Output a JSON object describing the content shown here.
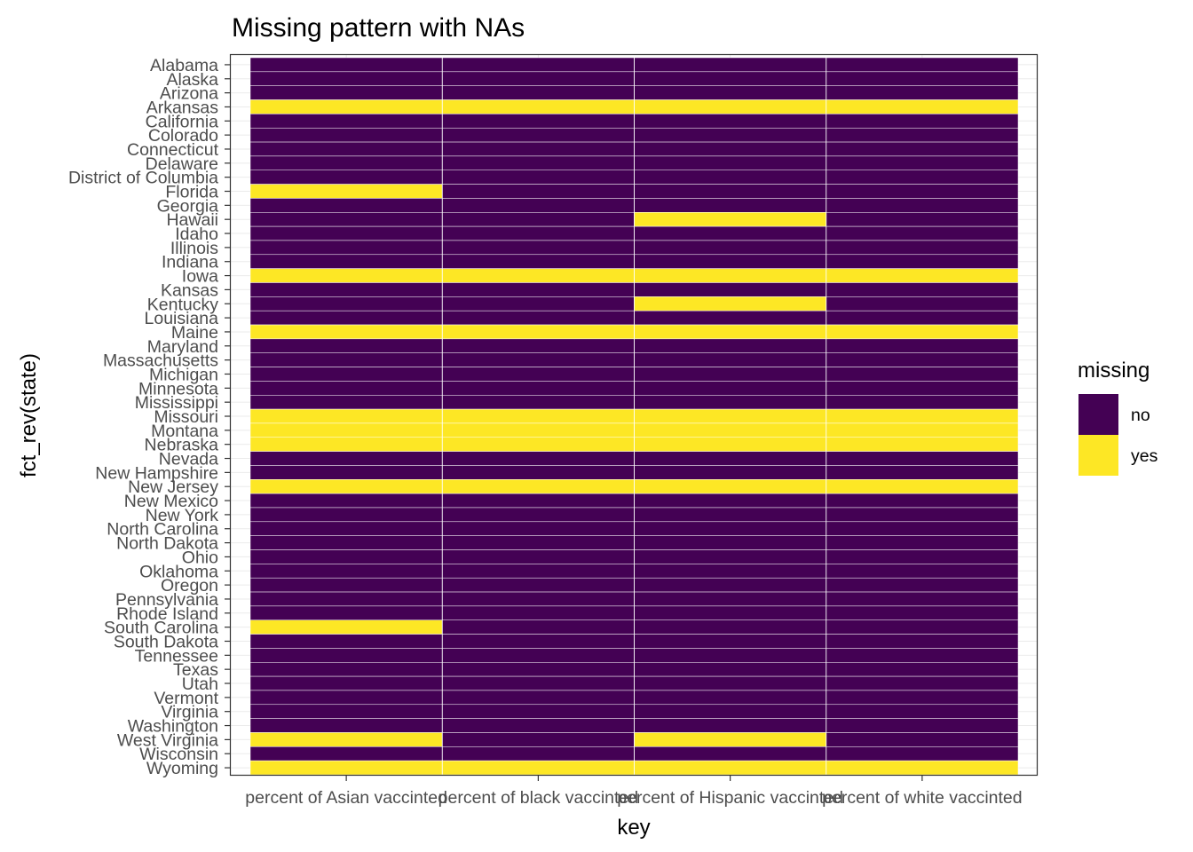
{
  "chart_data": {
    "type": "heatmap",
    "title": "Missing pattern with NAs",
    "xlabel": "key",
    "ylabel": "fct_rev(state)",
    "legend": {
      "title": "missing",
      "position": "right",
      "items": [
        {
          "label": "no",
          "color": "#440154"
        },
        {
          "label": "yes",
          "color": "#FDE725"
        }
      ]
    },
    "grid": true,
    "x": [
      "percent of Asian vaccinted",
      "percent of black vaccinted",
      "percent of Hispanic vaccinted",
      "percent of white vaccinted"
    ],
    "y": [
      "Alabama",
      "Alaska",
      "Arizona",
      "Arkansas",
      "California",
      "Colorado",
      "Connecticut",
      "Delaware",
      "District of Columbia",
      "Florida",
      "Georgia",
      "Hawaii",
      "Idaho",
      "Illinois",
      "Indiana",
      "Iowa",
      "Kansas",
      "Kentucky",
      "Louisiana",
      "Maine",
      "Maryland",
      "Massachusetts",
      "Michigan",
      "Minnesota",
      "Mississippi",
      "Missouri",
      "Montana",
      "Nebraska",
      "Nevada",
      "New Hampshire",
      "New Jersey",
      "New Mexico",
      "New York",
      "North Carolina",
      "North Dakota",
      "Ohio",
      "Oklahoma",
      "Oregon",
      "Pennsylvania",
      "Rhode Island",
      "South Carolina",
      "South Dakota",
      "Tennessee",
      "Texas",
      "Utah",
      "Vermont",
      "Virginia",
      "Washington",
      "West Virginia",
      "Wisconsin",
      "Wyoming"
    ],
    "missing": [
      [
        "no",
        "no",
        "no",
        "no"
      ],
      [
        "no",
        "no",
        "no",
        "no"
      ],
      [
        "no",
        "no",
        "no",
        "no"
      ],
      [
        "yes",
        "yes",
        "yes",
        "yes"
      ],
      [
        "no",
        "no",
        "no",
        "no"
      ],
      [
        "no",
        "no",
        "no",
        "no"
      ],
      [
        "no",
        "no",
        "no",
        "no"
      ],
      [
        "no",
        "no",
        "no",
        "no"
      ],
      [
        "no",
        "no",
        "no",
        "no"
      ],
      [
        "yes",
        "no",
        "no",
        "no"
      ],
      [
        "no",
        "no",
        "no",
        "no"
      ],
      [
        "no",
        "no",
        "yes",
        "no"
      ],
      [
        "no",
        "no",
        "no",
        "no"
      ],
      [
        "no",
        "no",
        "no",
        "no"
      ],
      [
        "no",
        "no",
        "no",
        "no"
      ],
      [
        "yes",
        "yes",
        "yes",
        "yes"
      ],
      [
        "no",
        "no",
        "no",
        "no"
      ],
      [
        "no",
        "no",
        "yes",
        "no"
      ],
      [
        "no",
        "no",
        "no",
        "no"
      ],
      [
        "yes",
        "yes",
        "yes",
        "yes"
      ],
      [
        "no",
        "no",
        "no",
        "no"
      ],
      [
        "no",
        "no",
        "no",
        "no"
      ],
      [
        "no",
        "no",
        "no",
        "no"
      ],
      [
        "no",
        "no",
        "no",
        "no"
      ],
      [
        "no",
        "no",
        "no",
        "no"
      ],
      [
        "yes",
        "yes",
        "yes",
        "yes"
      ],
      [
        "yes",
        "yes",
        "yes",
        "yes"
      ],
      [
        "yes",
        "yes",
        "yes",
        "yes"
      ],
      [
        "no",
        "no",
        "no",
        "no"
      ],
      [
        "no",
        "no",
        "no",
        "no"
      ],
      [
        "yes",
        "yes",
        "yes",
        "yes"
      ],
      [
        "no",
        "no",
        "no",
        "no"
      ],
      [
        "no",
        "no",
        "no",
        "no"
      ],
      [
        "no",
        "no",
        "no",
        "no"
      ],
      [
        "no",
        "no",
        "no",
        "no"
      ],
      [
        "no",
        "no",
        "no",
        "no"
      ],
      [
        "no",
        "no",
        "no",
        "no"
      ],
      [
        "no",
        "no",
        "no",
        "no"
      ],
      [
        "no",
        "no",
        "no",
        "no"
      ],
      [
        "no",
        "no",
        "no",
        "no"
      ],
      [
        "yes",
        "no",
        "no",
        "no"
      ],
      [
        "no",
        "no",
        "no",
        "no"
      ],
      [
        "no",
        "no",
        "no",
        "no"
      ],
      [
        "no",
        "no",
        "no",
        "no"
      ],
      [
        "no",
        "no",
        "no",
        "no"
      ],
      [
        "no",
        "no",
        "no",
        "no"
      ],
      [
        "no",
        "no",
        "no",
        "no"
      ],
      [
        "no",
        "no",
        "no",
        "no"
      ],
      [
        "yes",
        "no",
        "yes",
        "no"
      ],
      [
        "no",
        "no",
        "no",
        "no"
      ],
      [
        "yes",
        "yes",
        "yes",
        "yes"
      ]
    ]
  }
}
